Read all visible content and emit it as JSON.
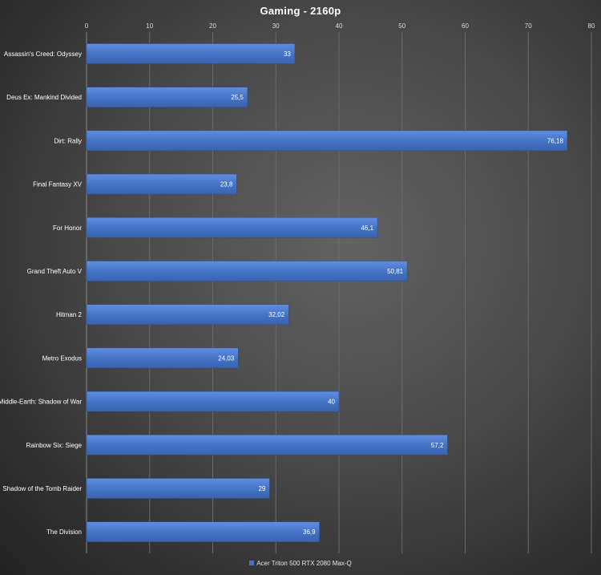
{
  "chart_data": {
    "type": "bar",
    "orientation": "horizontal",
    "title": "Gaming  - 2160p",
    "categories": [
      "Assassin's Creed: Odyssey",
      "Deus Ex: Mankind Divided",
      "Dirt: Rally",
      "Final Fantasy XV",
      "For Honor",
      "Grand Theft Auto V",
      "Hitman 2",
      "Metro Exodus",
      "Middle-Earth: Shadow of War",
      "Rainbow Six: Siege",
      "Shadow of the Tomb Raider",
      "The Division"
    ],
    "series": [
      {
        "name": "Acer Triton 500 RTX 2080 Max-Q",
        "color": "#4472C4",
        "values": [
          33,
          25.5,
          76.18,
          23.8,
          46.1,
          50.81,
          32.02,
          24.03,
          40,
          57.2,
          29,
          36.9
        ],
        "labels": [
          "33",
          "25,5",
          "76,18",
          "23,8",
          "46,1",
          "50,81",
          "32,02",
          "24,03",
          "40",
          "57,2",
          "29",
          "36,9"
        ]
      }
    ],
    "xlim": [
      0,
      80
    ],
    "xticks": [
      0,
      10,
      20,
      30,
      40,
      50,
      60,
      70,
      80
    ],
    "axis_position": "top",
    "grid": true,
    "legend": "bottom"
  }
}
